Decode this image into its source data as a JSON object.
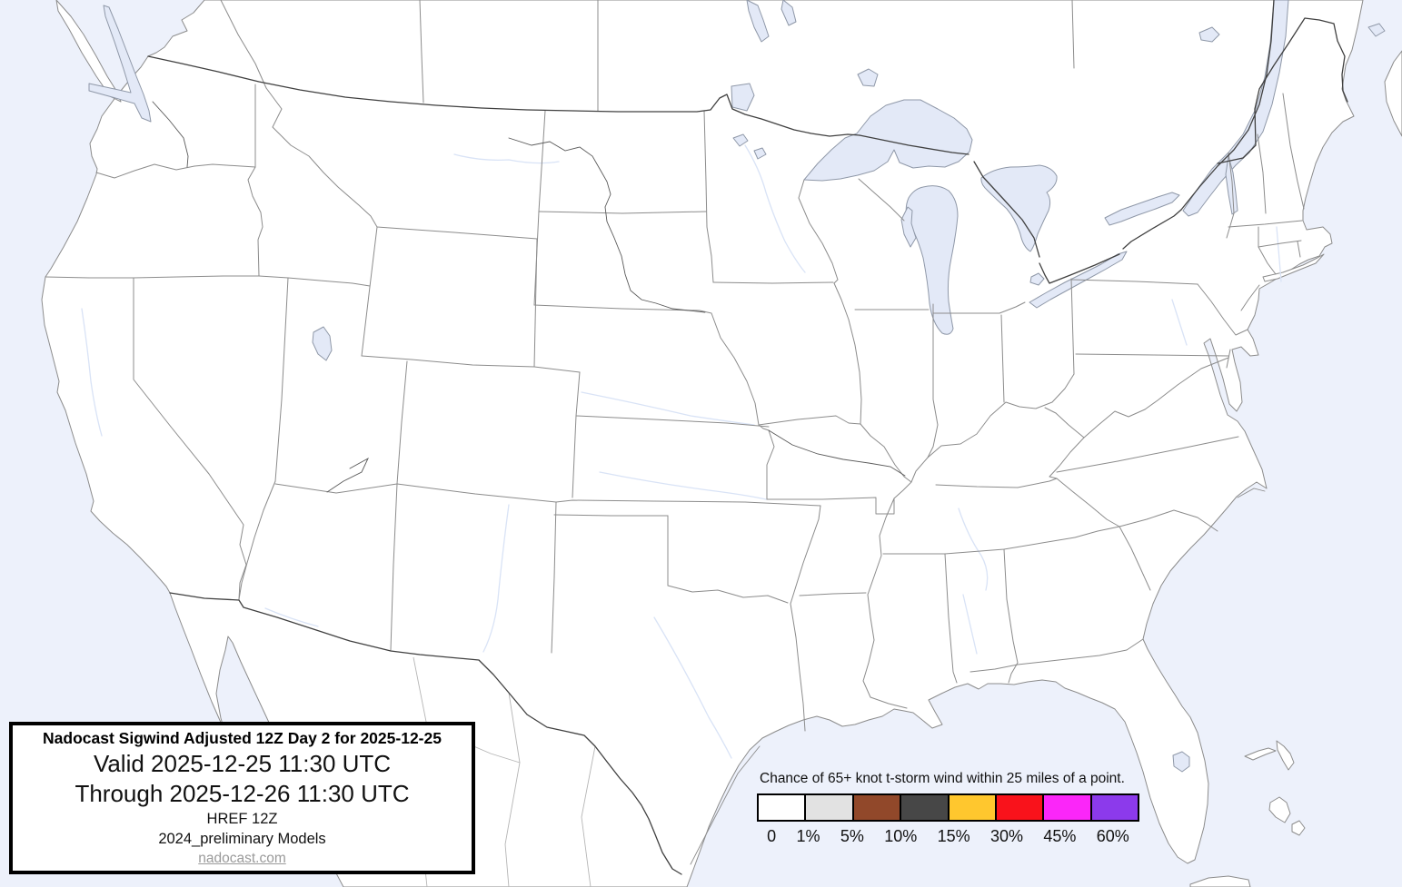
{
  "header_box": {
    "title": "Nadocast Sigwind Adjusted 12Z Day 2 for 2025-12-25",
    "valid_line": "Valid 2025-12-25 11:30 UTC",
    "through_line": "Through 2025-12-26 11:30 UTC",
    "model_line1": "HREF 12Z",
    "model_line2": "2024_preliminary Models",
    "site_link": "nadocast.com"
  },
  "legend": {
    "title": "Chance of 65+ knot t-storm wind within 25 miles of a point.",
    "items": [
      {
        "label": "0",
        "color": "#ffffff"
      },
      {
        "label": "1%",
        "color": "#e2e2e2"
      },
      {
        "label": "5%",
        "color": "#91482a"
      },
      {
        "label": "10%",
        "color": "#474747"
      },
      {
        "label": "15%",
        "color": "#ffc72e"
      },
      {
        "label": "30%",
        "color": "#f9121b"
      },
      {
        "label": "45%",
        "color": "#fb26f9"
      },
      {
        "label": "60%",
        "color": "#8c3aeb"
      }
    ]
  },
  "map_colors": {
    "ocean": "#edf1fb",
    "land": "#ffffff",
    "coast_stroke": "#8c8c8c",
    "lake_fill": "#e3e9f7",
    "lake_stroke": "#8f98a8",
    "state_border": "#8c8c8c",
    "international_border": "#404040",
    "river_dark": "#5a5a5a",
    "river_faint": "#d9e3f6",
    "mexico_state_border": "#b5b5b5"
  }
}
